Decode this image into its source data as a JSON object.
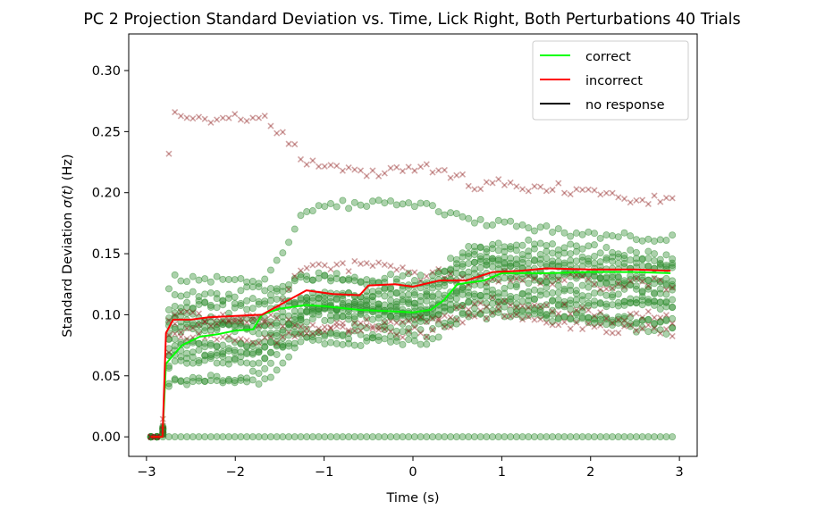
{
  "chart_data": {
    "type": "scatter",
    "title": "PC 2 Projection Standard Deviation vs. Time, Lick Right, Both Perturbations 40 Trials",
    "xlabel": "Time (s)",
    "ylabel_prefix": "Standard Deviation ",
    "ylabel_symbol": "σ(t)",
    "ylabel_suffix": " (Hz)",
    "xlim": [
      -3.2,
      3.2
    ],
    "ylim": [
      -0.016,
      0.33
    ],
    "xticks": [
      -3,
      -2,
      -1,
      0,
      1,
      2,
      3
    ],
    "xtick_labels": [
      "−3",
      "−2",
      "−1",
      "0",
      "1",
      "2",
      "3"
    ],
    "yticks": [
      0.0,
      0.05,
      0.1,
      0.15,
      0.2,
      0.25,
      0.3
    ],
    "ytick_labels": [
      "0.00",
      "0.05",
      "0.10",
      "0.15",
      "0.20",
      "0.25",
      "0.30"
    ],
    "grid": false,
    "legend_position": "top-right",
    "legend": [
      {
        "label": "correct",
        "color": "#00ff00"
      },
      {
        "label": "incorrect",
        "color": "#ff0000"
      },
      {
        "label": "no response",
        "color": "#000000"
      }
    ],
    "scatter_colors": {
      "correct": "#2e8b2e",
      "incorrect": "#8b1a1a"
    },
    "time_range": [
      -2.95,
      2.92
    ],
    "onset_time": -2.82,
    "correct_trials": [
      {
        "pre": 0.06,
        "post": 0.1,
        "late": 0.125
      },
      {
        "pre": 0.07,
        "post": 0.105,
        "late": 0.13
      },
      {
        "pre": 0.08,
        "post": 0.11,
        "late": 0.14
      },
      {
        "pre": 0.09,
        "post": 0.115,
        "late": 0.145
      },
      {
        "pre": 0.1,
        "post": 0.12,
        "late": 0.15
      },
      {
        "pre": 0.12,
        "post": 0.125,
        "late": 0.155
      },
      {
        "pre": 0.05,
        "post": 0.095,
        "late": 0.12
      },
      {
        "pre": 0.075,
        "post": 0.09,
        "late": 0.115
      },
      {
        "pre": 0.085,
        "post": 0.1,
        "late": 0.11
      },
      {
        "pre": 0.11,
        "post": 0.13,
        "late": 0.16
      },
      {
        "pre": 0.13,
        "post": 0.19,
        "late": 0.175
      },
      {
        "pre": 0.095,
        "post": 0.105,
        "late": 0.135
      },
      {
        "pre": 0.065,
        "post": 0.085,
        "late": 0.105
      },
      {
        "pre": 0.105,
        "post": 0.11,
        "late": 0.14
      },
      {
        "pre": 0.04,
        "post": 0.075,
        "late": 0.1
      }
    ],
    "correct_zero_trial": {
      "value": 0.0
    },
    "incorrect_trials": [
      {
        "pre": 0.26,
        "post": 0.22,
        "late": 0.205
      },
      {
        "pre": 0.08,
        "post": 0.09,
        "late": 0.1
      },
      {
        "pre": 0.09,
        "post": 0.14,
        "late": 0.135
      },
      {
        "pre": 0.1,
        "post": 0.095,
        "late": 0.11
      }
    ],
    "mean_correct": [
      {
        "x": -2.95,
        "y": 0.0
      },
      {
        "x": -2.82,
        "y": 0.0
      },
      {
        "x": -2.78,
        "y": 0.06
      },
      {
        "x": -2.6,
        "y": 0.075
      },
      {
        "x": -2.4,
        "y": 0.082
      },
      {
        "x": -2.2,
        "y": 0.084
      },
      {
        "x": -2.0,
        "y": 0.087
      },
      {
        "x": -1.8,
        "y": 0.088
      },
      {
        "x": -1.7,
        "y": 0.1
      },
      {
        "x": -1.5,
        "y": 0.105
      },
      {
        "x": -1.2,
        "y": 0.108
      },
      {
        "x": -1.0,
        "y": 0.107
      },
      {
        "x": -0.6,
        "y": 0.104
      },
      {
        "x": -0.3,
        "y": 0.103
      },
      {
        "x": 0.0,
        "y": 0.102
      },
      {
        "x": 0.2,
        "y": 0.104
      },
      {
        "x": 0.35,
        "y": 0.112
      },
      {
        "x": 0.5,
        "y": 0.125
      },
      {
        "x": 0.8,
        "y": 0.128
      },
      {
        "x": 1.0,
        "y": 0.134
      },
      {
        "x": 1.5,
        "y": 0.134
      },
      {
        "x": 2.0,
        "y": 0.135
      },
      {
        "x": 2.5,
        "y": 0.135
      },
      {
        "x": 2.9,
        "y": 0.134
      }
    ],
    "mean_incorrect": [
      {
        "x": -2.95,
        "y": 0.0
      },
      {
        "x": -2.82,
        "y": 0.0
      },
      {
        "x": -2.78,
        "y": 0.085
      },
      {
        "x": -2.7,
        "y": 0.096
      },
      {
        "x": -2.5,
        "y": 0.096
      },
      {
        "x": -2.3,
        "y": 0.098
      },
      {
        "x": -2.0,
        "y": 0.099
      },
      {
        "x": -1.7,
        "y": 0.1
      },
      {
        "x": -1.5,
        "y": 0.108
      },
      {
        "x": -1.2,
        "y": 0.12
      },
      {
        "x": -0.9,
        "y": 0.117
      },
      {
        "x": -0.6,
        "y": 0.116
      },
      {
        "x": -0.5,
        "y": 0.124
      },
      {
        "x": -0.2,
        "y": 0.125
      },
      {
        "x": 0.0,
        "y": 0.123
      },
      {
        "x": 0.3,
        "y": 0.128
      },
      {
        "x": 0.6,
        "y": 0.128
      },
      {
        "x": 0.9,
        "y": 0.135
      },
      {
        "x": 1.2,
        "y": 0.136
      },
      {
        "x": 1.5,
        "y": 0.138
      },
      {
        "x": 2.0,
        "y": 0.137
      },
      {
        "x": 2.5,
        "y": 0.137
      },
      {
        "x": 2.9,
        "y": 0.136
      }
    ]
  }
}
